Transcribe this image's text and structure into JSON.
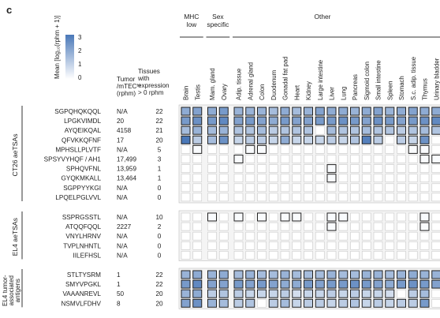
{
  "panel_label": "c",
  "legend": {
    "title": "Mean [log₁₀(rphm + 1)]",
    "ticks": [
      "3",
      "2",
      "1",
      "0"
    ]
  },
  "columns_header": {
    "tumor": [
      "Tumor",
      "/mTECʰᶦ",
      "(rphm)"
    ],
    "tissues": [
      "Tissues",
      "with",
      "expression",
      "> 0 rphm"
    ]
  },
  "chart_data": {
    "type": "heatmap",
    "value_scale": [
      0,
      3
    ],
    "colors": {
      "high": "#4a78b8",
      "low": "#ffffff",
      "border": "#222222",
      "empty_border": "#cfcfcf"
    },
    "groups": [
      {
        "label": "MHC low",
        "columns": [
          "Brain",
          "Testis"
        ]
      },
      {
        "label": "Sex specific",
        "columns": [
          "Mam. gland",
          "Ovary"
        ]
      },
      {
        "label": "Other",
        "columns": [
          "Adip. tissue",
          "Adrenal gland",
          "Colon",
          "Duodenum",
          "Gonadal fat pad",
          "Heart",
          "Kidney",
          "Large intestine",
          "Liver",
          "Lung",
          "Pancreas",
          "Sigmoid colon",
          "Small intestine",
          "Spleen",
          "Stomach",
          "S.c. adip. tissue",
          "Thymus",
          "Urinary bladder"
        ]
      }
    ],
    "row_groups": [
      {
        "label": "CT26 aeTSAs",
        "rows": [
          {
            "peptide": "SGPQHQKQQL",
            "tumor": "N/A",
            "tissues": "22",
            "values": [
              1.0,
              1.1,
              1.0,
              1.2,
              0.9,
              0.9,
              0.9,
              0.8,
              1.0,
              0.8,
              0.9,
              1.1,
              1.0,
              1.0,
              0.9,
              1.0,
              1.1,
              0.9,
              1.0,
              1.1,
              1.0,
              1.0
            ]
          },
          {
            "peptide": "LPGKVIMDL",
            "tumor": "20",
            "tissues": "22",
            "values": [
              1.2,
              1.3,
              1.2,
              1.4,
              1.1,
              1.2,
              1.1,
              1.0,
              1.2,
              1.1,
              1.1,
              1.2,
              1.2,
              1.3,
              1.2,
              1.1,
              1.3,
              1.2,
              1.1,
              1.2,
              1.3,
              1.4
            ]
          },
          {
            "peptide": "AYQEIKQAL",
            "tumor": "4158",
            "tissues": "21",
            "values": [
              0.8,
              0.9,
              0.8,
              0.9,
              0.7,
              0.7,
              0.8,
              0.6,
              0.7,
              0.7,
              0.7,
              0.0,
              0.8,
              0.7,
              0.7,
              0.8,
              0.7,
              0.7,
              0.6,
              0.7,
              0.8,
              0.7
            ]
          },
          {
            "peptide": "QFVKKQFNF",
            "tumor": "17",
            "tissues": "20",
            "values": [
              1.6,
              0.6,
              0.8,
              1.3,
              0.5,
              0.6,
              0.6,
              0.5,
              1.0,
              0.5,
              0.5,
              0.5,
              0.6,
              0.5,
              0.7,
              1.5,
              0.6,
              0.0,
              0.6,
              0.5,
              1.3,
              0.0
            ]
          },
          {
            "peptide": "MPHSLLPLVTF",
            "tumor": "N/A",
            "tissues": "5",
            "values": [
              0,
              0.05,
              0,
              0,
              0,
              0.05,
              0.05,
              0,
              0,
              0,
              0,
              0,
              0,
              0,
              0,
              0,
              0,
              0,
              0,
              0.05,
              0.05,
              0
            ]
          },
          {
            "peptide": "SPSYVYHQF / AH1",
            "tumor": "17,499",
            "tissues": "3",
            "values": [
              0,
              0,
              0,
              0,
              0.05,
              0,
              0,
              0,
              0,
              0,
              0,
              0,
              0,
              0,
              0,
              0,
              0,
              0,
              0,
              0,
              0.05,
              0.05
            ]
          },
          {
            "peptide": "SPHQVFNL",
            "tumor": "13,959",
            "tissues": "1",
            "values": [
              0,
              0,
              0,
              0,
              0,
              0,
              0,
              0,
              0,
              0,
              0,
              0,
              0.05,
              0,
              0,
              0,
              0,
              0,
              0,
              0,
              0,
              0
            ]
          },
          {
            "peptide": "GYQKMKALL",
            "tumor": "13,464",
            "tissues": "1",
            "values": [
              0,
              0,
              0,
              0,
              0,
              0,
              0,
              0,
              0,
              0,
              0,
              0,
              0.05,
              0,
              0,
              0,
              0,
              0,
              0,
              0,
              0,
              0
            ]
          },
          {
            "peptide": "SGPPYYKGI",
            "tumor": "N/A",
            "tissues": "0",
            "values": [
              0,
              0,
              0,
              0,
              0,
              0,
              0,
              0,
              0,
              0,
              0,
              0,
              0,
              0,
              0,
              0,
              0,
              0,
              0,
              0,
              0,
              0
            ]
          },
          {
            "peptide": "LPQELPGLVVL",
            "tumor": "N/A",
            "tissues": "0",
            "values": [
              0,
              0,
              0,
              0,
              0,
              0,
              0,
              0,
              0,
              0,
              0,
              0,
              0,
              0,
              0,
              0,
              0,
              0,
              0,
              0,
              0,
              0
            ]
          }
        ]
      },
      {
        "label": "EL4 aeTSAs",
        "rows": [
          {
            "peptide": "SSPRGSSTL",
            "tumor": "N/A",
            "tissues": "10",
            "values": [
              0,
              0,
              0.05,
              0,
              0.05,
              0,
              0.05,
              0,
              0.05,
              0.05,
              0,
              0,
              0.05,
              0.05,
              0,
              0,
              0,
              0,
              0,
              0,
              0.05,
              0
            ]
          },
          {
            "peptide": "ATQQFQQL",
            "tumor": "2227",
            "tissues": "2",
            "values": [
              0,
              0,
              0,
              0,
              0,
              0,
              0,
              0,
              0,
              0,
              0,
              0,
              0.05,
              0,
              0,
              0,
              0,
              0,
              0,
              0,
              0.05,
              0
            ]
          },
          {
            "peptide": "VNYLHRNV",
            "tumor": "N/A",
            "tissues": "0",
            "values": [
              0,
              0,
              0,
              0,
              0,
              0,
              0,
              0,
              0,
              0,
              0,
              0,
              0,
              0,
              0,
              0,
              0,
              0,
              0,
              0,
              0,
              0
            ]
          },
          {
            "peptide": "TVPLNHNTL",
            "tumor": "N/A",
            "tissues": "0",
            "values": [
              0,
              0,
              0,
              0,
              0,
              0,
              0,
              0,
              0,
              0,
              0,
              0,
              0,
              0,
              0,
              0,
              0,
              0,
              0,
              0,
              0,
              0
            ]
          },
          {
            "peptide": "IILEFHSL",
            "tumor": "N/A",
            "tissues": "0",
            "values": [
              0,
              0,
              0,
              0,
              0,
              0,
              0,
              0,
              0,
              0,
              0,
              0,
              0,
              0,
              0,
              0,
              0,
              0,
              0,
              0,
              0,
              0
            ]
          }
        ]
      },
      {
        "label": "EL4 tumor-associated antigens",
        "rows": [
          {
            "peptide": "STLTYSRM",
            "tumor": "1",
            "tissues": "22",
            "values": [
              0.9,
              1.0,
              0.9,
              1.0,
              0.8,
              0.9,
              0.8,
              0.8,
              0.9,
              0.8,
              0.8,
              0.8,
              0.9,
              0.8,
              0.8,
              0.9,
              0.9,
              0.8,
              0.9,
              1.0,
              0.9,
              0.9
            ]
          },
          {
            "peptide": "SMYVPGKL",
            "tumor": "1",
            "tissues": "22",
            "values": [
              1.2,
              1.4,
              1.1,
              1.1,
              1.2,
              1.1,
              1.2,
              1.1,
              1.0,
              1.0,
              1.2,
              1.1,
              1.2,
              1.2,
              1.3,
              1.2,
              1.1,
              1.0,
              1.2,
              1.3,
              1.2,
              1.1
            ]
          },
          {
            "peptide": "VAAANREVL",
            "tumor": "50",
            "tissues": "20",
            "values": [
              0.9,
              1.0,
              0.6,
              0.7,
              0.6,
              0.5,
              0.5,
              0.5,
              0.6,
              0.4,
              0.5,
              0.5,
              0.6,
              0.5,
              0.6,
              0.5,
              0.5,
              0.4,
              0.0,
              0.6,
              0.8,
              0.0
            ]
          },
          {
            "peptide": "NSMVLFDHV",
            "tumor": "8",
            "tissues": "20",
            "values": [
              1.1,
              1.3,
              0.9,
              0.8,
              0.6,
              0.7,
              0.0,
              0.6,
              0.8,
              0.5,
              0.6,
              0.6,
              0.5,
              0.6,
              0.7,
              0.5,
              0.6,
              0.5,
              0.6,
              0.6,
              1.2,
              0.0
            ]
          }
        ]
      }
    ]
  }
}
